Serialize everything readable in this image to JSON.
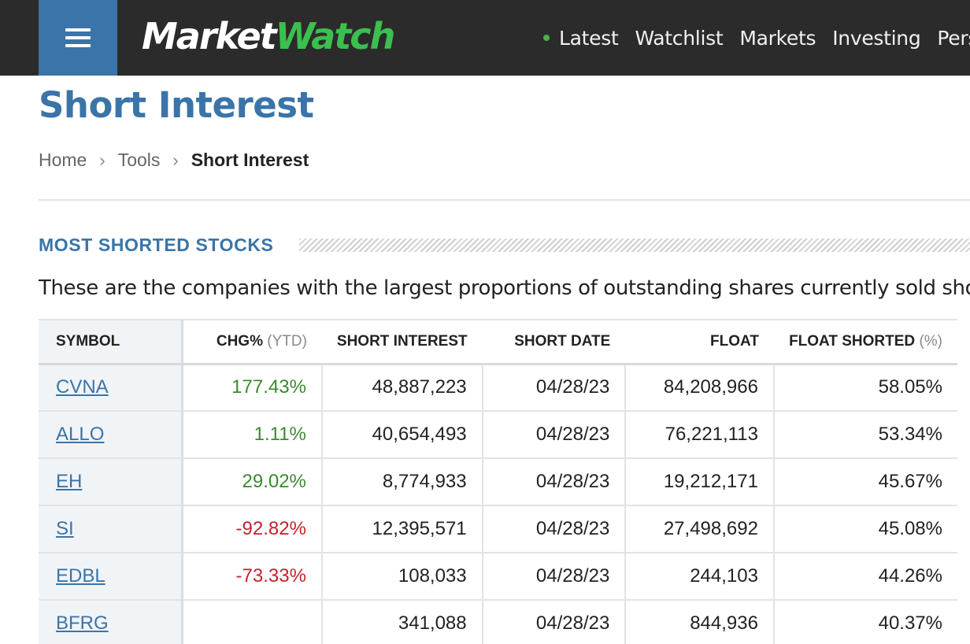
{
  "header": {
    "logo_part1": "Market",
    "logo_part2": "Watch",
    "nav": [
      "Latest",
      "Watchlist",
      "Markets",
      "Investing",
      "Pers"
    ]
  },
  "page": {
    "title": "Short Interest",
    "breadcrumb": [
      "Home",
      "Tools",
      "Short Interest"
    ],
    "section_title": "MOST SHORTED STOCKS",
    "description": "These are the companies with the largest proportions of outstanding shares currently sold short."
  },
  "table": {
    "headers": {
      "symbol": "SYMBOL",
      "chg": "CHG%",
      "chg_muted": "(YTD)",
      "short_interest": "SHORT INTEREST",
      "short_date": "SHORT DATE",
      "float": "FLOAT",
      "float_shorted": "FLOAT SHORTED",
      "float_shorted_muted": "(%)"
    },
    "rows": [
      {
        "symbol": "CVNA",
        "chg": "177.43%",
        "short_interest": "48,887,223",
        "short_date": "04/28/23",
        "float": "84,208,966",
        "float_shorted": "58.05%"
      },
      {
        "symbol": "ALLO",
        "chg": "1.11%",
        "short_interest": "40,654,493",
        "short_date": "04/28/23",
        "float": "76,221,113",
        "float_shorted": "53.34%"
      },
      {
        "symbol": "EH",
        "chg": "29.02%",
        "short_interest": "8,774,933",
        "short_date": "04/28/23",
        "float": "19,212,171",
        "float_shorted": "45.67%"
      },
      {
        "symbol": "SI",
        "chg": "-92.82%",
        "short_interest": "12,395,571",
        "short_date": "04/28/23",
        "float": "27,498,692",
        "float_shorted": "45.08%"
      },
      {
        "symbol": "EDBL",
        "chg": "-73.33%",
        "short_interest": "108,033",
        "short_date": "04/28/23",
        "float": "244,103",
        "float_shorted": "44.26%"
      },
      {
        "symbol": "BFRG",
        "chg": "",
        "short_interest": "341,088",
        "short_date": "04/28/23",
        "float": "844,936",
        "float_shorted": "40.37%"
      }
    ]
  },
  "colors": {
    "brand_blue": "#3a74a8",
    "logo_green": "#3bbf4f",
    "positive": "#3a8a2e",
    "negative": "#c8202c"
  },
  "icons": {
    "menu": "hamburger-menu-icon",
    "breadcrumb_separator": "chevron-right-icon",
    "live_indicator": "green-dot-icon"
  }
}
